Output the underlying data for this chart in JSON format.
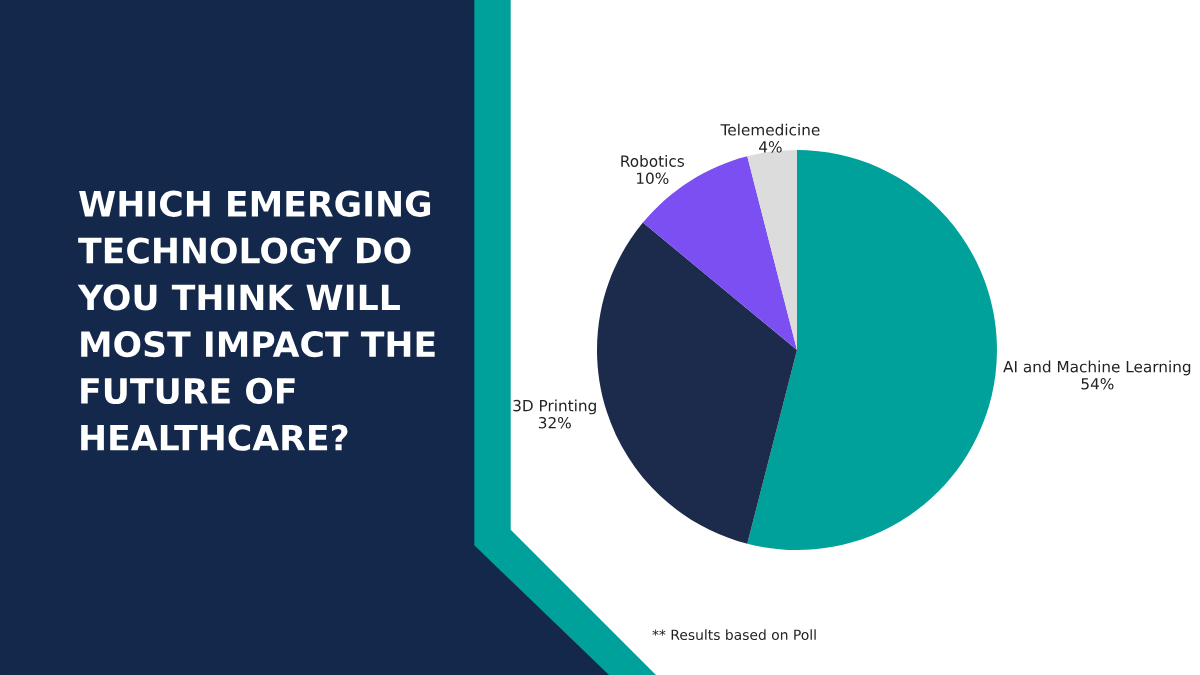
{
  "chart_data": {
    "type": "pie",
    "title": "WHICH EMERGING TECHNOLOGY DO YOU THINK WILL MOST IMPACT THE FUTURE OF HEALTHCARE?",
    "categories": [
      "AI and Machine Learning",
      "3D Printing",
      "Robotics",
      "Telemedicine"
    ],
    "values": [
      54,
      32,
      10,
      4
    ],
    "value_labels": [
      "54%",
      "32%",
      "10%",
      "4%"
    ],
    "colors": [
      "#00a19a",
      "#1c2a4b",
      "#7b4ff2",
      "#dcdcdc"
    ],
    "legend": false,
    "annotations": [
      "** Results based on Poll"
    ]
  }
}
